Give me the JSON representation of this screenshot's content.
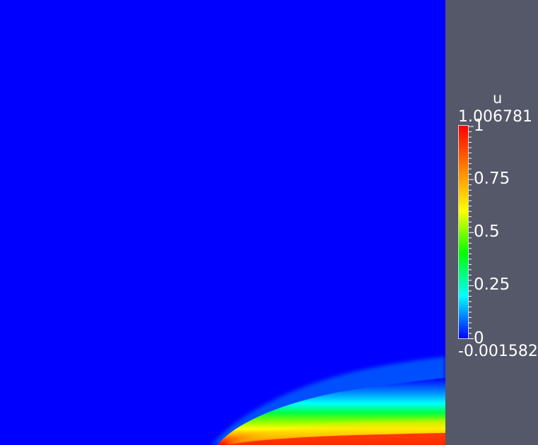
{
  "viewport": {
    "colormap": [
      "#0000ff",
      "#0080ff",
      "#00ffff",
      "#00ff80",
      "#00ff00",
      "#80ff00",
      "#ffff00",
      "#ffc000",
      "#ff8000",
      "#ff4000",
      "#ff0000"
    ],
    "background_color": "#0000ff",
    "panel_color": "#545869"
  },
  "scalar_bar": {
    "title": "u",
    "max_label": "1.006781",
    "min_label": "-0.001582",
    "range": [
      -0.001582,
      1.006781
    ],
    "tick_labels": [
      {
        "value": 1,
        "label": "1"
      },
      {
        "value": 0.75,
        "label": "0.75"
      },
      {
        "value": 0.5,
        "label": "0.5"
      },
      {
        "value": 0.25,
        "label": "0.25"
      },
      {
        "value": 0,
        "label": "0"
      }
    ]
  }
}
